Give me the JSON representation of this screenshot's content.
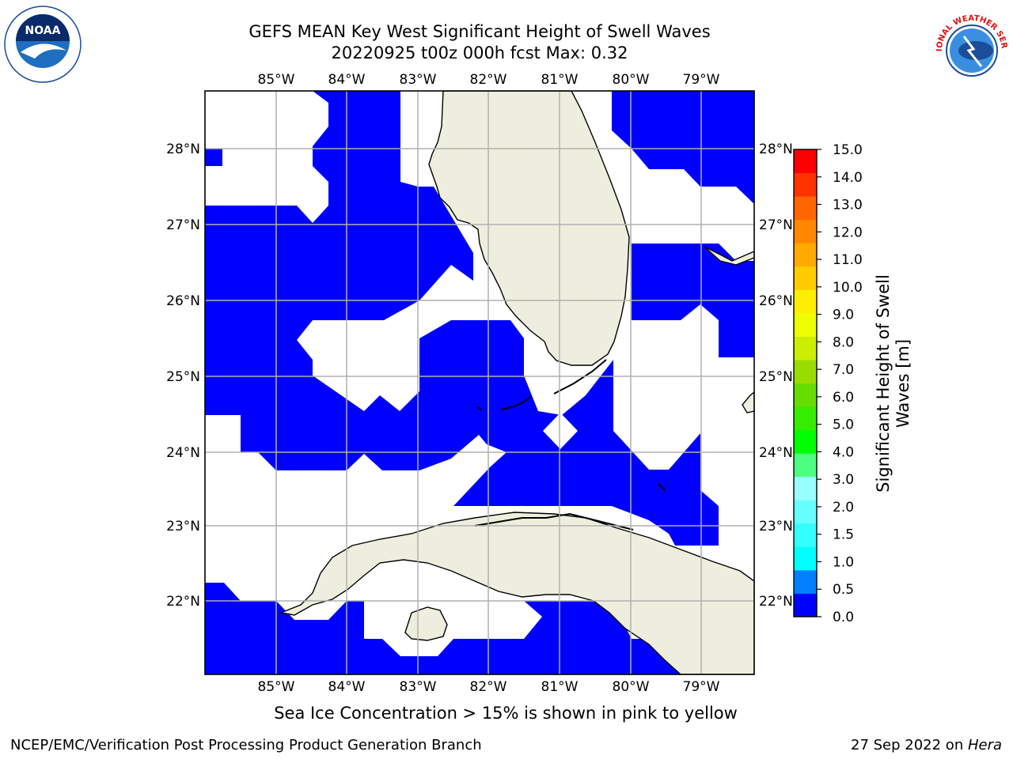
{
  "title": {
    "line1": "GEFS MEAN Key West Significant Height of Swell Waves",
    "line2": "20220925 t00z 000h fcst   Max: 0.32"
  },
  "map": {
    "longitude_ticks": [
      "85°W",
      "84°W",
      "83°W",
      "82°W",
      "81°W",
      "80°W",
      "79°W"
    ],
    "latitude_ticks": [
      "28°N",
      "27°N",
      "26°N",
      "25°N",
      "24°N",
      "23°N",
      "22°N"
    ],
    "ocean_fill_color": "#0000ff",
    "land_color": "#eeeedf",
    "gridline_color": "#b0b0b0"
  },
  "colorbar": {
    "label": "Significant Height of Swell Waves [m]",
    "ticks": [
      "15.0",
      "14.0",
      "13.0",
      "12.0",
      "11.0",
      "10.0",
      "9.0",
      "8.0",
      "7.0",
      "6.0",
      "5.0",
      "4.0",
      "3.0",
      "2.0",
      "1.5",
      "1.0",
      "0.5",
      "0.0"
    ],
    "colors_bottom_to_top": [
      "#0000ff",
      "#0080ff",
      "#00ffff",
      "#33ffff",
      "#66ffff",
      "#99ffff",
      "#4cff80",
      "#00ff00",
      "#33ee00",
      "#66dd00",
      "#99dd00",
      "#ccee00",
      "#eeff00",
      "#ffee00",
      "#ffcc00",
      "#ffaa00",
      "#ff8800",
      "#ff6600",
      "#ff3300",
      "#ff0000"
    ]
  },
  "logos": {
    "noaa_text": "NOAA",
    "nws_text": "NATIONAL WEATHER SERVICE"
  },
  "subcaption": "Sea Ice Concentration > 15% is shown in pink to yellow",
  "footer": {
    "left": "NCEP/EMC/Verification Post Processing Product Generation Branch",
    "right_date": "27 Sep 2022 on ",
    "right_host": "Hera"
  }
}
